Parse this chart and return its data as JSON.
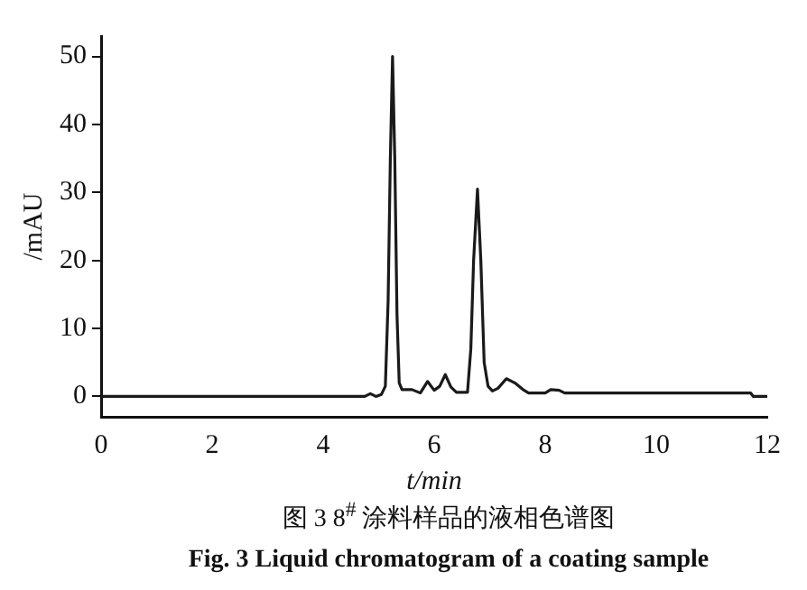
{
  "chart_data": {
    "type": "line",
    "xlabel": "t/min",
    "ylabel": "/mAU",
    "annotations": [
      "图 3   8$^{#}$ 涂料样品的液相色谱图",
      "Fig. 3   Liquid chromatogram of a coating sample"
    ],
    "series": [
      {
        "color": "#1a1a1a",
        "x": [
          0,
          4.75,
          4.85,
          4.95,
          5.05,
          5.12,
          5.17,
          5.21,
          5.25,
          5.29,
          5.33,
          5.37,
          5.42,
          5.6,
          5.75,
          5.88,
          6.0,
          6.1,
          6.2,
          6.3,
          6.4,
          6.6,
          6.66,
          6.71,
          6.78,
          6.84,
          6.9,
          6.97,
          7.05,
          7.15,
          7.3,
          7.45,
          7.6,
          7.7,
          8.0,
          8.1,
          8.25,
          8.35,
          11.7,
          11.75,
          12
        ],
        "values": [
          0,
          0,
          0.4,
          0,
          0.3,
          1.5,
          14,
          35,
          50,
          35,
          12,
          2,
          1,
          1,
          0.5,
          2.2,
          0.9,
          1.5,
          3.2,
          1.4,
          0.6,
          0.6,
          7,
          20,
          30.5,
          20,
          5,
          1.5,
          0.8,
          1.2,
          2.6,
          2,
          1,
          0.5,
          0.5,
          1,
          0.9,
          0.5,
          0.5,
          0,
          0
        ]
      }
    ],
    "xlim": [
      0,
      12
    ],
    "xticks": [
      0,
      2,
      4,
      6,
      8,
      10,
      12
    ],
    "ylim": [
      -3,
      53
    ],
    "yticks": [
      0,
      10,
      20,
      30,
      40,
      50
    ],
    "grid": false,
    "legend": false,
    "marker": "none",
    "line_style": "solid"
  }
}
